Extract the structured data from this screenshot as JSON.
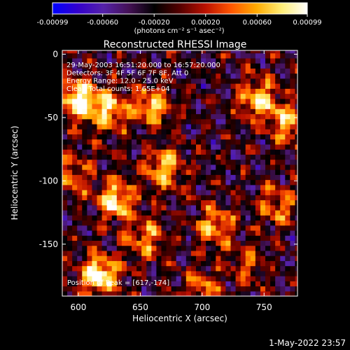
{
  "chart_data": {
    "type": "heatmap",
    "title": "Reconstructed RHESSI Image",
    "xlabel": "Heliocentric X (arcsec)",
    "ylabel": "Heliocentric Y (arcsec)",
    "xlim": [
      587,
      777
    ],
    "ylim": [
      -191,
      3
    ],
    "x_ticks": [
      600,
      650,
      700,
      750
    ],
    "y_ticks": [
      0,
      -50,
      -100,
      -150
    ],
    "colorbar": {
      "min": -0.00099,
      "max": 0.00099,
      "ticks": [
        "-0.00099",
        "-0.00060",
        "-0.00020",
        "0.00020",
        "0.00060",
        "0.00099"
      ],
      "tick_values": [
        -0.00099,
        -0.0006,
        -0.0002,
        0.0002,
        0.0006,
        0.00099
      ],
      "unit_label": "(photons cm⁻² s⁻¹ asec⁻²)",
      "colors": [
        "#0000ff",
        "#3300cc",
        "#5522aa",
        "#441155",
        "#000000",
        "#550000",
        "#bb1100",
        "#ff5500",
        "#ffaa00",
        "#ffee77",
        "#ffffff"
      ]
    },
    "annotations": [
      "29-May-2003 16:51:20.000 to 16:57:20.000",
      "Detectors: 3F 4F 5F 6F 7F 8F, Att 0",
      "Energy Range: 12.0 - 25.0 keV",
      "Clean    Total counts: 1.65E+04"
    ],
    "peak_label": "Position of Peak = [617,-174]",
    "peak": [
      617,
      -174
    ],
    "bright_sources": [
      {
        "x": 617,
        "y": -174,
        "strength": 1.0
      },
      {
        "x": 600,
        "y": -35,
        "strength": 0.95
      },
      {
        "x": 625,
        "y": -45,
        "strength": 0.75
      },
      {
        "x": 660,
        "y": -40,
        "strength": 0.7
      },
      {
        "x": 630,
        "y": -115,
        "strength": 0.85
      },
      {
        "x": 670,
        "y": -90,
        "strength": 0.75
      },
      {
        "x": 745,
        "y": -35,
        "strength": 0.8
      },
      {
        "x": 770,
        "y": -55,
        "strength": 0.7
      },
      {
        "x": 760,
        "y": -120,
        "strength": 0.55
      },
      {
        "x": 710,
        "y": -135,
        "strength": 0.65
      },
      {
        "x": 655,
        "y": -145,
        "strength": 0.6
      },
      {
        "x": 700,
        "y": -185,
        "strength": 0.55
      },
      {
        "x": 595,
        "y": -95,
        "strength": 0.5
      },
      {
        "x": 735,
        "y": -165,
        "strength": 0.4
      }
    ],
    "grid": false
  },
  "footer": {
    "date": "1-May-2022 23:57"
  }
}
